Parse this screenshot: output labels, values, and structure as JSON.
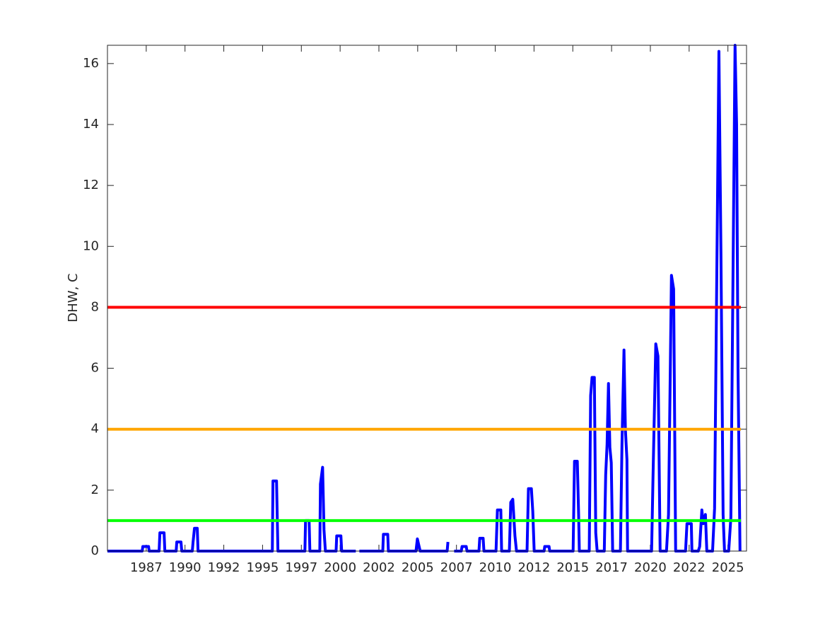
{
  "chart_data": {
    "type": "line",
    "ylabel": "DHW, C",
    "xlim": [
      1985,
      2026.2
    ],
    "ylim": [
      0,
      16.6
    ],
    "xticks": [
      {
        "value": 1987.5,
        "label": "1987"
      },
      {
        "value": 1990,
        "label": "1990"
      },
      {
        "value": 1992.5,
        "label": "1992"
      },
      {
        "value": 1995,
        "label": "1995"
      },
      {
        "value": 1997.5,
        "label": "1997"
      },
      {
        "value": 2000,
        "label": "2000"
      },
      {
        "value": 2002.5,
        "label": "2002"
      },
      {
        "value": 2005,
        "label": "2005"
      },
      {
        "value": 2007.5,
        "label": "2007"
      },
      {
        "value": 2010,
        "label": "2010"
      },
      {
        "value": 2012.5,
        "label": "2012"
      },
      {
        "value": 2015,
        "label": "2015"
      },
      {
        "value": 2017.5,
        "label": "2017"
      },
      {
        "value": 2020,
        "label": "2020"
      },
      {
        "value": 2022.5,
        "label": "2022"
      },
      {
        "value": 2025,
        "label": "2025"
      }
    ],
    "yticks": [
      0,
      2,
      4,
      6,
      8,
      10,
      12,
      14,
      16
    ],
    "hlines": [
      {
        "value": 8,
        "color": "#ff0000"
      },
      {
        "value": 4,
        "color": "#ffa500"
      },
      {
        "value": 1,
        "color": "#00ff00"
      }
    ],
    "series": [
      {
        "color": "#0000ff",
        "x": [
          1985.0,
          1987.24,
          1987.28,
          1987.65,
          1987.69,
          1988.33,
          1988.38,
          1988.65,
          1988.7,
          1989.43,
          1989.47,
          1989.74,
          1989.79,
          1990.47,
          1990.52,
          1990.61,
          1990.79,
          1990.84,
          1995.63,
          1995.67,
          1995.9,
          1995.99,
          1997.73,
          1997.77,
          1998.0,
          1998.05,
          1998.69,
          1998.73,
          1998.87,
          1998.96,
          1999.05,
          1999.74,
          1999.78,
          2000.05,
          2000.1,
          2001.01,
          2001.12,
          2001.24,
          2002.75,
          2002.79,
          2003.07,
          2003.11,
          2004.89,
          2004.98,
          2005.07,
          2005.16,
          2006.9,
          2006.95,
          2007.15,
          2007.35,
          2007.81,
          2007.86,
          2008.13,
          2008.18,
          2008.95,
          2009.0,
          2009.22,
          2009.27,
          2010.05,
          2010.14,
          2010.36,
          2010.41,
          2010.91,
          2011.0,
          2011.13,
          2011.27,
          2011.37,
          2012.05,
          2012.14,
          2012.33,
          2012.42,
          2012.51,
          2013.15,
          2013.19,
          2013.47,
          2013.51,
          2015.02,
          2015.11,
          2015.29,
          2015.38,
          2015.42,
          2016.06,
          2016.15,
          2016.24,
          2016.39,
          2016.48,
          2016.57,
          2017.03,
          2017.12,
          2017.21,
          2017.3,
          2017.39,
          2017.48,
          2017.57,
          2018.07,
          2018.17,
          2018.3,
          2018.39,
          2018.49,
          2018.53,
          2020.08,
          2020.17,
          2020.35,
          2020.49,
          2020.63,
          2021.04,
          2021.17,
          2021.36,
          2021.5,
          2021.63,
          2022.27,
          2022.36,
          2022.64,
          2022.68,
          2023.09,
          2023.18,
          2023.32,
          2023.41,
          2023.55,
          2023.64,
          2024.01,
          2024.14,
          2024.42,
          2024.55,
          2024.69,
          2024.78,
          2025.05,
          2025.19,
          2025.46,
          2025.56,
          2025.65,
          2025.78
        ],
        "values": [
          0,
          0,
          0.15,
          0.15,
          0,
          0,
          0.6,
          0.6,
          0,
          0,
          0.3,
          0.3,
          0,
          0,
          0.3,
          0.75,
          0.75,
          0,
          0,
          2.3,
          2.3,
          0,
          0,
          1.0,
          1.0,
          0,
          0,
          2.2,
          2.75,
          0.7,
          0,
          0,
          0.5,
          0.5,
          0,
          0,
          null,
          0,
          0,
          0.55,
          0.55,
          0,
          0,
          0.4,
          0.2,
          0,
          0,
          0.3,
          null,
          0,
          0,
          0.15,
          0.15,
          0,
          0,
          0.42,
          0.42,
          0,
          0,
          1.35,
          1.35,
          0,
          0,
          1.6,
          1.7,
          0.5,
          0,
          0,
          2.05,
          2.05,
          1.3,
          0,
          0,
          0.15,
          0.15,
          0,
          0,
          2.95,
          2.95,
          1.1,
          0,
          0,
          5.1,
          5.7,
          5.7,
          0.6,
          0,
          0,
          2.5,
          3.5,
          5.5,
          3.4,
          2.9,
          0,
          0,
          3.5,
          6.6,
          4.0,
          3.0,
          0,
          0,
          2.4,
          6.8,
          6.4,
          0,
          0,
          1.2,
          9.05,
          8.6,
          0,
          0,
          0.9,
          0.9,
          0,
          0,
          0.15,
          1.35,
          0.9,
          1.2,
          0,
          0,
          1.4,
          16.4,
          9.8,
          1.2,
          0,
          0,
          1.1,
          16.6,
          14,
          6,
          0
        ]
      }
    ]
  }
}
